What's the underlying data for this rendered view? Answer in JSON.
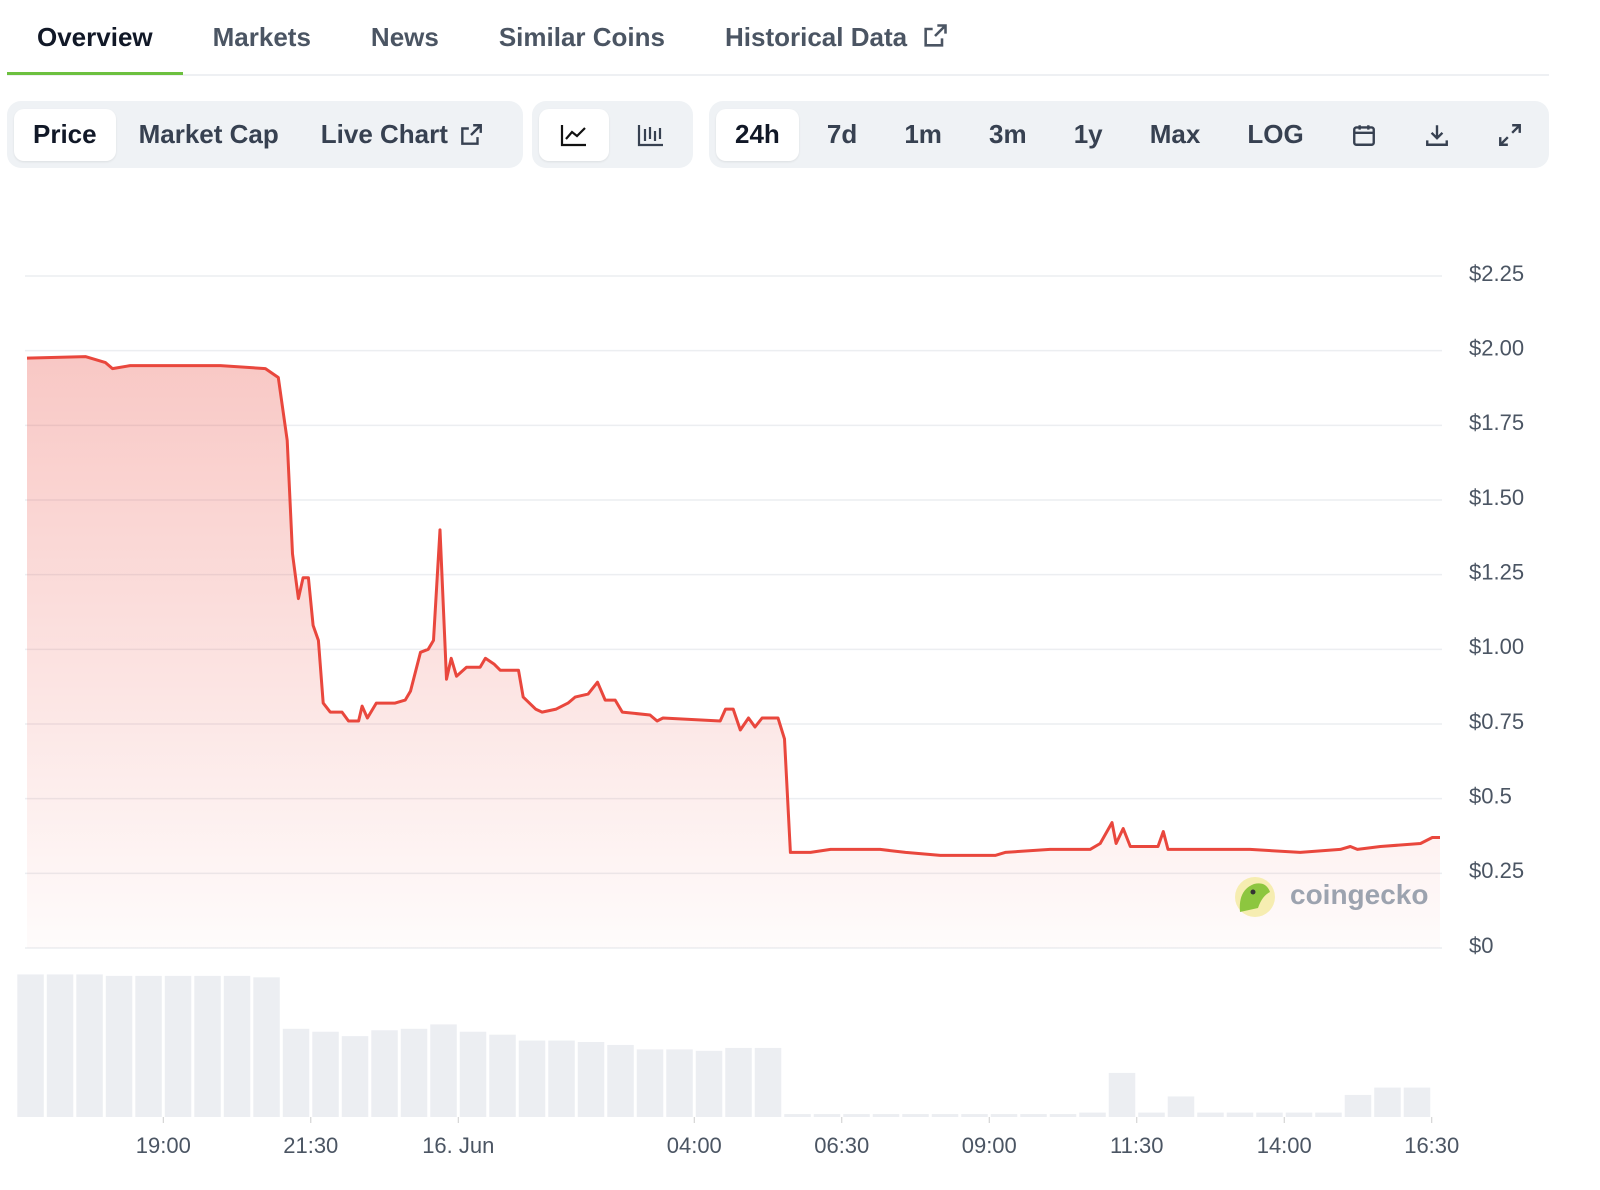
{
  "tabs": [
    "Overview",
    "Markets",
    "News",
    "Similar Coins",
    "Historical Data"
  ],
  "chart_toggles": [
    "Price",
    "Market Cap",
    "Live Chart"
  ],
  "ranges": [
    "24h",
    "7d",
    "1m",
    "3m",
    "1y",
    "Max",
    "LOG"
  ],
  "chart_data": {
    "type": "area",
    "color": "#e9473d",
    "grid": true,
    "watermark": "coingecko",
    "x": [
      -7.31,
      -6.32,
      -5.98,
      -5.86,
      -5.56,
      -4.03,
      -3.27,
      -3.05,
      -2.9,
      -2.81,
      -2.71,
      -2.63,
      -2.54,
      -2.46,
      -2.37,
      -2.29,
      -2.17,
      -1.97,
      -1.86,
      -1.69,
      -1.63,
      -1.54,
      -1.39,
      -1.07,
      -0.9,
      -0.81,
      -0.64,
      -0.51,
      -0.42,
      -0.31,
      -0.2,
      -0.12,
      -0.03,
      0.14,
      0.37,
      0.46,
      0.61,
      0.71,
      1.02,
      1.1,
      1.31,
      1.42,
      1.66,
      1.86,
      1.98,
      2.2,
      2.36,
      2.49,
      2.66,
      2.78,
      3.25,
      3.37,
      3.47,
      4.44,
      4.53,
      4.66,
      4.78,
      4.92,
      5.03,
      5.15,
      5.42,
      5.53,
      5.63,
      5.97,
      6.31,
      7.15,
      7.58,
      8.17,
      8.42,
      9.1,
      9.27,
      10.03,
      10.71,
      10.88,
      11.08,
      11.15,
      11.27,
      11.39,
      11.86,
      11.95,
      12.03,
      12.41,
      13.42,
      14.27,
      14.95,
      15.12,
      15.24,
      15.63,
      16.31,
      16.51,
      16.64
    ],
    "values": [
      1.975,
      1.98,
      1.96,
      1.94,
      1.95,
      1.95,
      1.94,
      1.91,
      1.7,
      1.32,
      1.17,
      1.24,
      1.24,
      1.08,
      1.03,
      0.82,
      0.79,
      0.79,
      0.76,
      0.76,
      0.81,
      0.77,
      0.82,
      0.82,
      0.83,
      0.86,
      0.99,
      1.0,
      1.03,
      1.4,
      0.9,
      0.97,
      0.91,
      0.94,
      0.94,
      0.97,
      0.95,
      0.93,
      0.93,
      0.84,
      0.8,
      0.79,
      0.8,
      0.82,
      0.84,
      0.85,
      0.89,
      0.83,
      0.83,
      0.79,
      0.78,
      0.76,
      0.77,
      0.76,
      0.8,
      0.8,
      0.73,
      0.77,
      0.74,
      0.77,
      0.77,
      0.7,
      0.32,
      0.32,
      0.33,
      0.33,
      0.32,
      0.31,
      0.31,
      0.31,
      0.32,
      0.33,
      0.33,
      0.35,
      0.42,
      0.35,
      0.4,
      0.34,
      0.34,
      0.39,
      0.33,
      0.33,
      0.33,
      0.32,
      0.33,
      0.34,
      0.33,
      0.34,
      0.35,
      0.37,
      0.37
    ],
    "xlim": [
      -7.31,
      16.64
    ],
    "ylim": [
      0,
      2.25
    ],
    "xticks": [
      {
        "value": -5,
        "label": "19:00"
      },
      {
        "value": -2.5,
        "label": "21:30"
      },
      {
        "value": 0,
        "label": "16. Jun"
      },
      {
        "value": 4,
        "label": "04:00"
      },
      {
        "value": 6.5,
        "label": "06:30"
      },
      {
        "value": 9,
        "label": "09:00"
      },
      {
        "value": 11.5,
        "label": "11:30"
      },
      {
        "value": 14,
        "label": "14:00"
      },
      {
        "value": 16.5,
        "label": "16:30"
      }
    ],
    "yticks": [
      {
        "value": 0,
        "label": "$0"
      },
      {
        "value": 0.25,
        "label": "$0.25"
      },
      {
        "value": 0.5,
        "label": "$0.5"
      },
      {
        "value": 0.75,
        "label": "$0.75"
      },
      {
        "value": 1,
        "label": "$1.00"
      },
      {
        "value": 1.25,
        "label": "$1.25"
      },
      {
        "value": 1.5,
        "label": "$1.50"
      },
      {
        "value": 1.75,
        "label": "$1.75"
      },
      {
        "value": 2,
        "label": "$2.00"
      },
      {
        "value": 2.25,
        "label": "$2.25"
      }
    ],
    "volume": {
      "color": "#eceef2",
      "ylim": [
        0,
        1
      ],
      "x": [
        -7.25,
        -6.75,
        -6.25,
        -5.75,
        -5.25,
        -4.75,
        -4.25,
        -3.75,
        -3.25,
        -2.75,
        -2.25,
        -1.75,
        -1.25,
        -0.75,
        -0.25,
        0.25,
        0.75,
        1.25,
        1.75,
        2.25,
        2.75,
        3.25,
        3.75,
        4.25,
        4.75,
        5.25,
        5.75,
        6.25,
        6.75,
        7.25,
        7.75,
        8.25,
        8.75,
        9.25,
        9.75,
        10.25,
        10.75,
        11.25,
        11.75,
        12.25,
        12.75,
        13.25,
        13.75,
        14.25,
        14.75,
        15.25,
        15.75,
        16.25
      ],
      "values": [
        0.97,
        0.97,
        0.97,
        0.96,
        0.96,
        0.96,
        0.96,
        0.96,
        0.95,
        0.6,
        0.58,
        0.55,
        0.59,
        0.6,
        0.63,
        0.58,
        0.56,
        0.52,
        0.52,
        0.51,
        0.49,
        0.46,
        0.46,
        0.45,
        0.47,
        0.47,
        0.02,
        0.02,
        0.02,
        0.02,
        0.02,
        0.02,
        0.02,
        0.02,
        0.02,
        0.02,
        0.03,
        0.3,
        0.03,
        0.14,
        0.03,
        0.03,
        0.03,
        0.03,
        0.03,
        0.15,
        0.2,
        0.2
      ]
    }
  }
}
